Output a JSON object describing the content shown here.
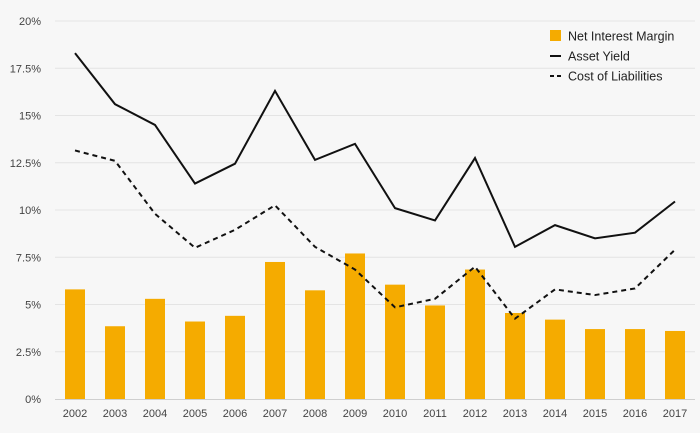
{
  "chart_data": {
    "type": "bar",
    "categories": [
      "2002",
      "2003",
      "2004",
      "2005",
      "2006",
      "2007",
      "2008",
      "2009",
      "2010",
      "2011",
      "2012",
      "2013",
      "2014",
      "2015",
      "2016",
      "2017"
    ],
    "series": [
      {
        "name": "Net Interest Margin",
        "type": "bar",
        "color": "#f5ab00",
        "values": [
          5.8,
          3.85,
          5.3,
          4.1,
          4.4,
          7.25,
          5.75,
          7.7,
          6.05,
          4.95,
          6.85,
          4.55,
          4.2,
          3.7,
          3.7,
          3.6
        ]
      },
      {
        "name": "Asset Yield",
        "type": "line",
        "style": "solid",
        "color": "#111111",
        "values": [
          18.3,
          15.6,
          14.5,
          11.4,
          12.45,
          16.3,
          12.65,
          13.5,
          10.1,
          9.45,
          12.75,
          8.05,
          9.2,
          8.5,
          8.8,
          10.45
        ]
      },
      {
        "name": "Cost of Liabilities",
        "type": "line",
        "style": "dashed",
        "color": "#111111",
        "values": [
          13.15,
          12.6,
          9.8,
          8.0,
          8.95,
          10.25,
          8.05,
          6.85,
          4.85,
          5.3,
          7.0,
          4.25,
          5.8,
          5.5,
          5.85,
          7.9
        ]
      }
    ],
    "yticks": [
      "0%",
      "2.5%",
      "5%",
      "7.5%",
      "10%",
      "12.5%",
      "15%",
      "17.5%",
      "20%"
    ],
    "ylim": [
      0,
      20
    ],
    "grid": true,
    "legend_position": "top-right"
  }
}
